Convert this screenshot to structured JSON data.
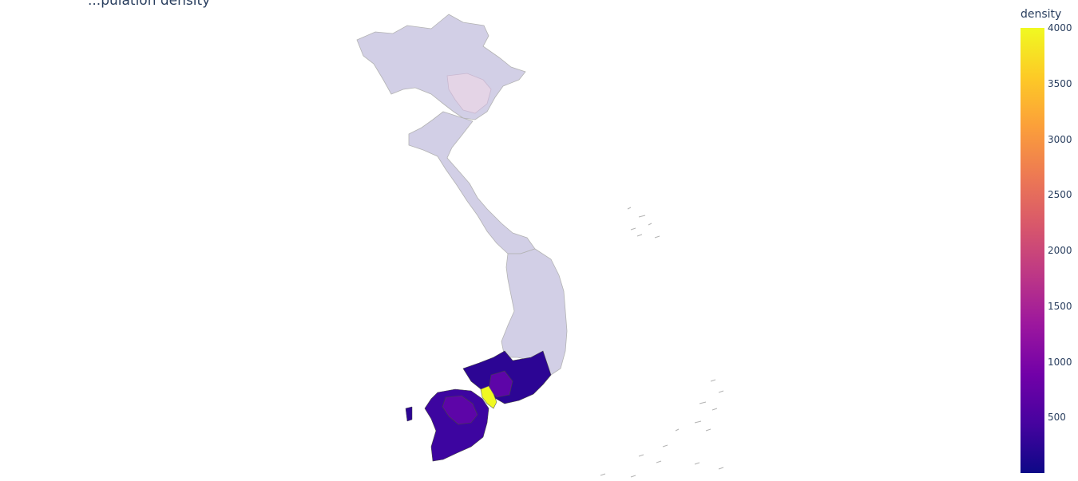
{
  "title_fragment": "...pulation density",
  "colorbar": {
    "title": "density",
    "ticks": [
      "4000",
      "3500",
      "3000",
      "2500",
      "2000",
      "1500",
      "1000",
      "500"
    ],
    "tick_values": [
      4000,
      3500,
      3000,
      2500,
      2000,
      1500,
      1000,
      500
    ],
    "range": [
      0,
      4000
    ],
    "colorscale": [
      "#0d0887",
      "#46039f",
      "#7201a8",
      "#9c179e",
      "#bd3786",
      "#d8576b",
      "#ed7953",
      "#fb9f3a",
      "#fdca26",
      "#f0f921"
    ]
  },
  "map": {
    "region": "Vietnam",
    "colors": {
      "no_data": "#d2cfe6",
      "no_data_highlight": "#e4d4e6",
      "border": "#b3b3b3",
      "dark_region": "#2c0594",
      "mid_region": "#5d05a8",
      "hot_region": "#f0f921"
    }
  }
}
